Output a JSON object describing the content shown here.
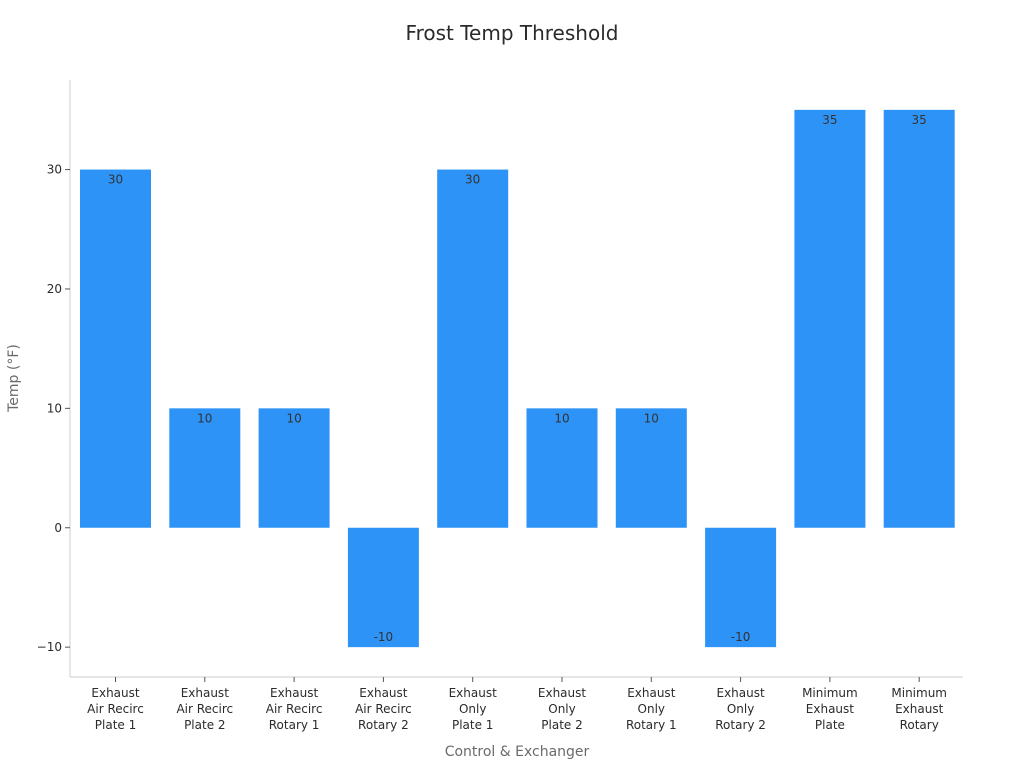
{
  "chart_data": {
    "type": "bar",
    "title": "Frost Temp Threshold",
    "xlabel": "Control & Exchanger",
    "ylabel": "Temp (°F)",
    "ylim": [
      -12.5,
      37.5
    ],
    "yticks": [
      -10,
      0,
      10,
      20,
      30
    ],
    "yticklabels": [
      "−10",
      "0",
      "10",
      "20",
      "30"
    ],
    "grid": false,
    "categories": [
      [
        "Exhaust",
        "Air Recirc",
        "Plate 1"
      ],
      [
        "Exhaust",
        "Air Recirc",
        "Plate 2"
      ],
      [
        "Exhaust",
        "Air Recirc",
        "Rotary 1"
      ],
      [
        "Exhaust",
        "Air Recirc",
        "Rotary 2"
      ],
      [
        "Exhaust",
        "Only",
        "Plate 1"
      ],
      [
        "Exhaust",
        "Only",
        "Plate 2"
      ],
      [
        "Exhaust",
        "Only",
        "Rotary 1"
      ],
      [
        "Exhaust",
        "Only",
        "Rotary 2"
      ],
      [
        "Minimum",
        "Exhaust",
        "Plate"
      ],
      [
        "Minimum",
        "Exhaust",
        "Rotary"
      ]
    ],
    "values": [
      30,
      10,
      10,
      -10,
      30,
      10,
      10,
      -10,
      35,
      35
    ],
    "data_labels": [
      "30",
      "10",
      "10",
      "-10",
      "30",
      "10",
      "10",
      "-10",
      "35",
      "35"
    ],
    "colors": {
      "bar": "#2e93f7",
      "axis": "#cccccc",
      "text": "#2b2b2b",
      "axis_title": "#6b6b6b"
    }
  }
}
